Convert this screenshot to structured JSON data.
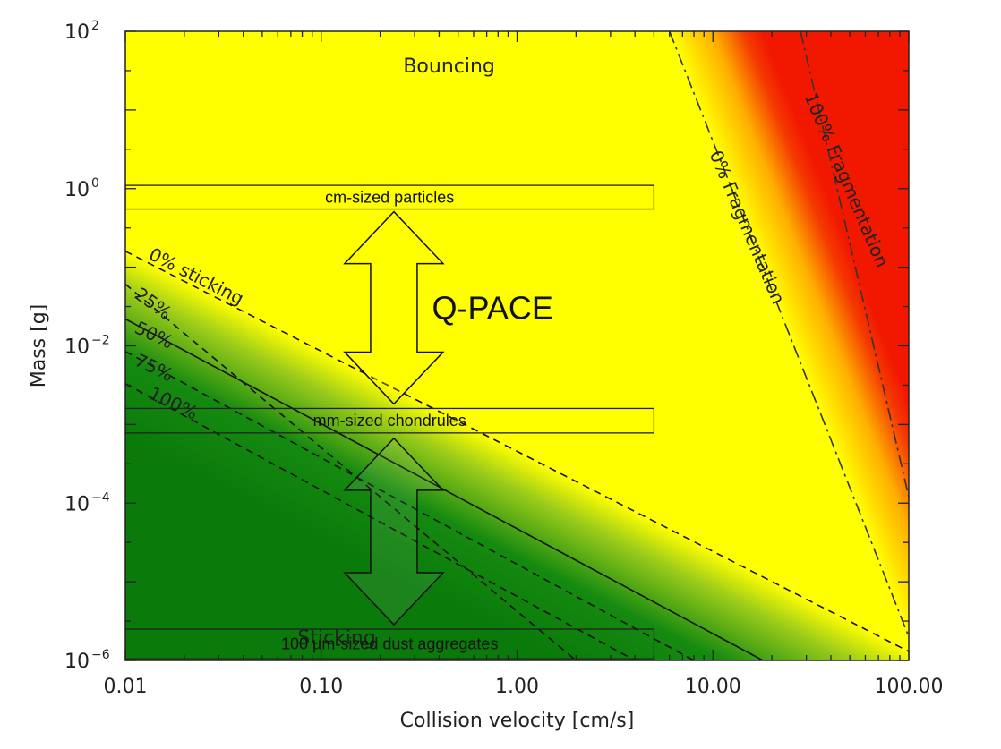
{
  "chart_data": {
    "type": "region-map",
    "xlabel": "Collision velocity [cm/s]",
    "ylabel": "Mass [g]",
    "xscale": "log",
    "yscale": "log",
    "xlim": [
      0.01,
      100
    ],
    "ylim": [
      1e-06,
      100
    ],
    "x_ticks": [
      {
        "value": 0.01,
        "label": "0.01"
      },
      {
        "value": 0.1,
        "label": "0.10"
      },
      {
        "value": 1,
        "label": "1.00"
      },
      {
        "value": 10,
        "label": "10.00"
      },
      {
        "value": 100,
        "label": "100.00"
      }
    ],
    "y_ticks": [
      {
        "value": 1e-06,
        "base": "10",
        "exp": "−6"
      },
      {
        "value": 0.0001,
        "base": "10",
        "exp": "−4"
      },
      {
        "value": 0.01,
        "base": "10",
        "exp": "−2"
      },
      {
        "value": 1,
        "base": "10",
        "exp": "0"
      },
      {
        "value": 100,
        "base": "10",
        "exp": "2"
      }
    ],
    "regions": {
      "bouncing": {
        "label": "Bouncing",
        "color": "#ffff00",
        "label_at": {
          "v": 0.45,
          "m": 30
        }
      },
      "sticking": {
        "label": "Sticking",
        "color": "#0a7a0a",
        "label_at": {
          "v": 0.12,
          "m": 1.6e-06
        }
      },
      "fragmentation": {
        "color": "#f21800"
      }
    },
    "sticking_lines": [
      {
        "label": "0% sticking",
        "points": [
          [
            0.01,
            0.16
          ],
          [
            100,
            1.3e-06
          ]
        ],
        "style": "dashed",
        "label_at": {
          "v": 0.013,
          "m": 0.13
        }
      },
      {
        "label": "25%",
        "points": [
          [
            0.01,
            0.061
          ],
          [
            2,
            1e-06
          ]
        ],
        "style": "dashed",
        "label_at": {
          "v": 0.011,
          "m": 0.042
        }
      },
      {
        "label": "50%",
        "points": [
          [
            0.01,
            0.022
          ],
          [
            18,
            1e-06
          ]
        ],
        "style": "solid",
        "label_at": {
          "v": 0.011,
          "m": 0.015
        }
      },
      {
        "label": "75%",
        "points": [
          [
            0.01,
            0.0085
          ],
          [
            8,
            1e-06
          ]
        ],
        "style": "dashed",
        "label_at": {
          "v": 0.011,
          "m": 0.0058
        }
      },
      {
        "label": "100%",
        "points": [
          [
            0.01,
            0.0033
          ],
          [
            4,
            1e-06
          ]
        ],
        "style": "dashed",
        "label_at": {
          "v": 0.013,
          "m": 0.0022
        }
      }
    ],
    "fragmentation_lines": [
      {
        "label": "0% Fragmentation",
        "points": [
          [
            6,
            100
          ],
          [
            100,
            2e-06
          ]
        ],
        "style": "dash-dot",
        "label_at": {
          "v": 14,
          "m": 0.3
        }
      },
      {
        "label": "100% Fragmentation",
        "points": [
          [
            28,
            100
          ],
          [
            100,
            0.00012
          ]
        ],
        "style": "dash-dot",
        "label_at": {
          "v": 45,
          "m": 1.2
        }
      }
    ],
    "size_bands": [
      {
        "label": "cm-sized particles",
        "v_range": [
          0.01,
          5
        ],
        "m_range": [
          0.55,
          1.1
        ]
      },
      {
        "label": "mm-sized chondrules",
        "v_range": [
          0.01,
          5
        ],
        "m_range": [
          0.00078,
          0.0016
        ]
      },
      {
        "label": "100 µm-sized dust aggregates",
        "v_range": [
          0.01,
          5
        ],
        "m_range": [
          1.05e-06,
          2.5e-06
        ]
      }
    ],
    "qpace": {
      "label": "Q-PACE",
      "arrow_v": 0.235,
      "label_at": {
        "v": 0.75,
        "m": 0.022
      }
    }
  }
}
